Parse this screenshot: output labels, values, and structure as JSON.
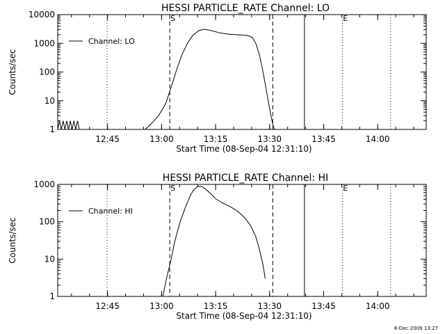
{
  "footer": {
    "date_stamp": "8-Dec-2009 13:27"
  },
  "chart_data": [
    {
      "type": "line",
      "title": "HESSI PARTICLE_RATE Channel: LO",
      "xlabel": "Start Time (08-Sep-04 12:31:10)",
      "ylabel": "Counts/sec",
      "y_scale": "log",
      "ylim": [
        1,
        10000
      ],
      "y_ticks": [
        1,
        10,
        100,
        1000,
        10000
      ],
      "y_tick_labels": [
        "1",
        "10",
        "100",
        "1000",
        "10000"
      ],
      "xlim_minutes_after_start": [
        0,
        102.3
      ],
      "x_tick_labels": [
        "12:45",
        "13:00",
        "13:15",
        "13:30",
        "13:45",
        "14:00"
      ],
      "x_ticks_minutes_after_start": [
        13.83,
        28.83,
        43.83,
        58.83,
        73.83,
        88.83
      ],
      "legend": {
        "entries": [
          "Channel: LO"
        ],
        "position": "top-left"
      },
      "markers": [
        {
          "label": "S",
          "style": "dashed",
          "minutes_after_start": 31.1
        },
        {
          "label": "",
          "style": "dashed",
          "minutes_after_start": 59.7
        },
        {
          "label": "",
          "style": "solid",
          "minutes_after_start": 68.5
        },
        {
          "label": "",
          "style": "dotted",
          "minutes_after_start": 13.7
        },
        {
          "label": "E",
          "style": "dotted",
          "minutes_after_start": 79.0
        },
        {
          "label": "",
          "style": "dotted",
          "minutes_after_start": 92.4
        }
      ],
      "series": [
        {
          "name": "Channel: LO",
          "x": [
            24.3,
            26.0,
            28.0,
            30.0,
            31.5,
            33.0,
            34.5,
            36.0,
            37.5,
            39.0,
            40.5,
            42.0,
            43.5,
            45.0,
            46.5,
            48.0,
            49.5,
            51.0,
            52.5,
            54.0,
            55.0,
            56.0,
            57.0,
            58.0,
            59.0,
            59.7,
            60.2
          ],
          "y": [
            1,
            1.6,
            3,
            8,
            30,
            120,
            400,
            1000,
            1900,
            2700,
            3100,
            2900,
            2600,
            2300,
            2150,
            2050,
            2000,
            1950,
            1900,
            1600,
            1000,
            400,
            100,
            20,
            4,
            1.5,
            1
          ]
        }
      ],
      "noise_series": {
        "x": [
          0.0,
          0.5,
          1.0,
          1.5,
          2.0,
          2.5,
          3.0,
          3.5,
          4.0,
          4.5,
          5.0,
          5.5,
          6.0
        ],
        "y": [
          1,
          2,
          1,
          2,
          1,
          2,
          1,
          2,
          1,
          2,
          1,
          2,
          1
        ]
      }
    },
    {
      "type": "line",
      "title": "HESSI PARTICLE_RATE Channel: HI",
      "xlabel": "Start Time (08-Sep-04 12:31:10)",
      "ylabel": "Counts/sec",
      "y_scale": "log",
      "ylim": [
        1,
        1000
      ],
      "y_ticks": [
        1,
        10,
        100,
        1000
      ],
      "y_tick_labels": [
        "1",
        "10",
        "100",
        "1000"
      ],
      "xlim_minutes_after_start": [
        0,
        102.3
      ],
      "x_tick_labels": [
        "12:45",
        "13:00",
        "13:15",
        "13:30",
        "13:45",
        "14:00"
      ],
      "x_ticks_minutes_after_start": [
        13.83,
        28.83,
        43.83,
        58.83,
        73.83,
        88.83
      ],
      "legend": {
        "entries": [
          "Channel: HI"
        ],
        "position": "top-left"
      },
      "markers": [
        {
          "label": "S",
          "style": "dashed",
          "minutes_after_start": 31.1
        },
        {
          "label": "",
          "style": "dashed",
          "minutes_after_start": 59.7
        },
        {
          "label": "",
          "style": "solid",
          "minutes_after_start": 68.5
        },
        {
          "label": "",
          "style": "dotted",
          "minutes_after_start": 13.7
        },
        {
          "label": "E",
          "style": "dotted",
          "minutes_after_start": 79.0
        },
        {
          "label": "",
          "style": "dotted",
          "minutes_after_start": 92.4
        }
      ],
      "series": [
        {
          "name": "Channel: HI",
          "x": [
            29.2,
            29.8,
            30.5,
            31.5,
            32.5,
            34.0,
            35.5,
            37.0,
            38.0,
            39.0,
            40.0,
            41.0,
            42.5,
            44.0,
            46.0,
            48.0,
            50.0,
            52.0,
            53.5,
            55.0,
            56.0,
            57.0,
            57.6
          ],
          "y": [
            1,
            2,
            4,
            10,
            30,
            100,
            250,
            550,
            760,
            900,
            870,
            760,
            560,
            400,
            310,
            250,
            190,
            125,
            80,
            40,
            18,
            7,
            3
          ]
        }
      ]
    }
  ]
}
